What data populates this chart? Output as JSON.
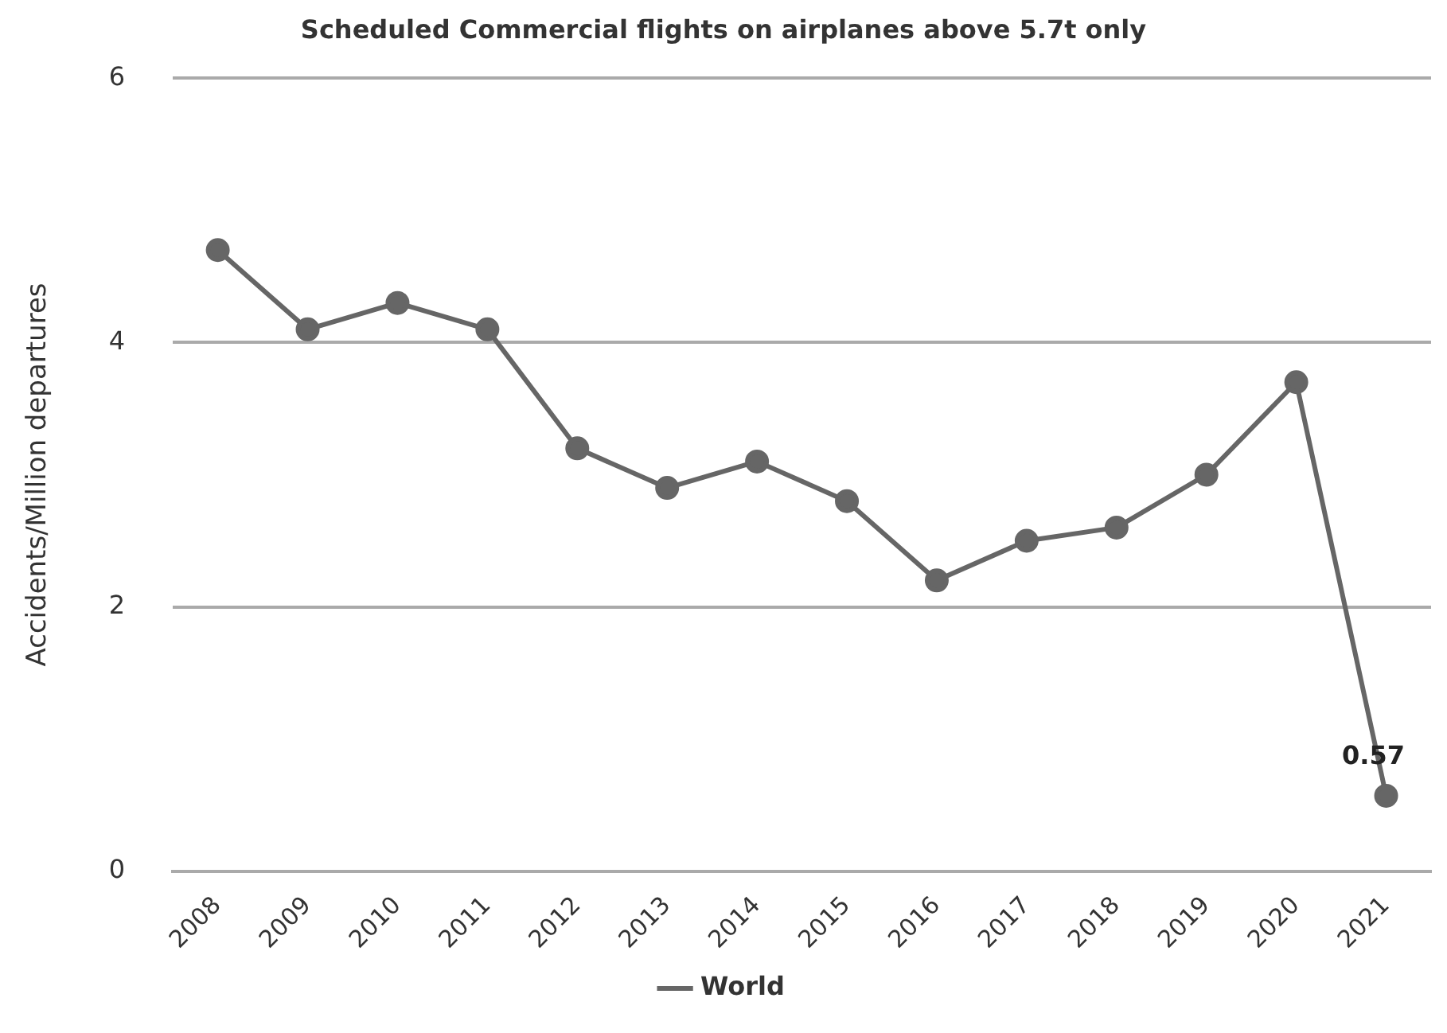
{
  "chart_data": {
    "type": "line",
    "title": "Scheduled Commercial flights on airplanes above 5.7t only",
    "ylabel": "Accidents/Million departures",
    "categories": [
      "2008",
      "2009",
      "2010",
      "2011",
      "2012",
      "2013",
      "2014",
      "2015",
      "2016",
      "2017",
      "2018",
      "2019",
      "2020",
      "2021"
    ],
    "series": [
      {
        "name": "World",
        "color": "#666666",
        "values": [
          4.7,
          4.1,
          4.3,
          4.1,
          3.2,
          2.9,
          3.1,
          2.8,
          2.2,
          2.5,
          2.6,
          3.0,
          3.7,
          0.57
        ],
        "value_labels": [
          null,
          null,
          null,
          null,
          null,
          null,
          null,
          null,
          null,
          null,
          null,
          null,
          null,
          "0.57"
        ]
      }
    ],
    "ylim": [
      0,
      6
    ],
    "yticks": [
      0,
      2,
      4,
      6
    ],
    "grid": "y",
    "legend": "bottom",
    "marker": "circle",
    "line_style": "solid"
  }
}
